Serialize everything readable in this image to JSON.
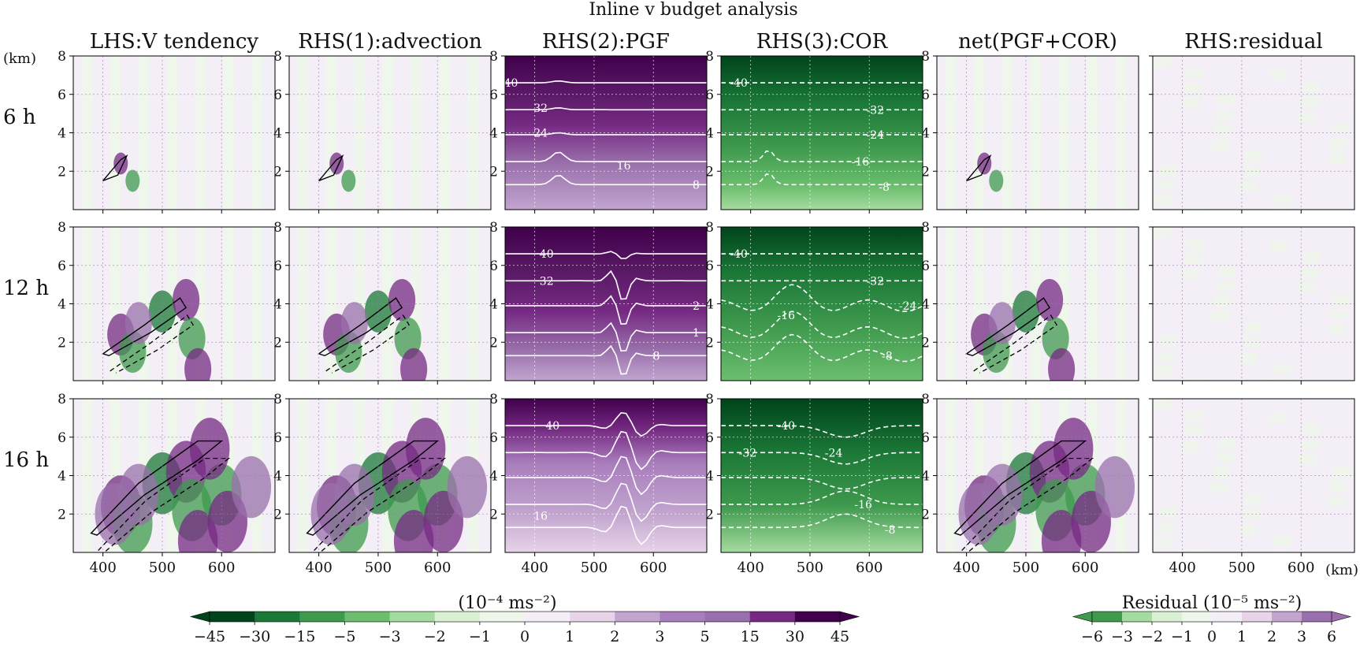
{
  "chart_data": {
    "type": "contour",
    "title": "Inline v budget analysis",
    "columns": [
      "LHS:V tendency",
      "RHS(1):advection",
      "RHS(2):PGF",
      "RHS(3):COR",
      "net(PGF+COR)",
      "RHS:residual"
    ],
    "rows": [
      "6 h",
      "12 h",
      "16 h"
    ],
    "y_unit": "(km)",
    "x_unit": "(km)",
    "ylim": [
      0,
      8
    ],
    "xlim": [
      350,
      690
    ],
    "yticks": [
      "8",
      "6",
      "4",
      "2"
    ],
    "xticks": [
      "400",
      "500",
      "600"
    ],
    "contour_labels": {
      "pgf": [
        [
          {
            "t": "40",
            "x": 360,
            "y": 6.6
          },
          {
            "t": "32",
            "x": 410,
            "y": 5.3
          },
          {
            "t": "24",
            "x": 410,
            "y": 4.0
          },
          {
            "t": "16",
            "x": 550,
            "y": 2.3
          },
          {
            "t": "8",
            "x": 672,
            "y": 1.3
          }
        ],
        [
          {
            "t": "40",
            "x": 420,
            "y": 6.6
          },
          {
            "t": "32",
            "x": 420,
            "y": 5.2
          },
          {
            "t": "2",
            "x": 672,
            "y": 3.9
          },
          {
            "t": "1",
            "x": 672,
            "y": 2.5
          },
          {
            "t": "8",
            "x": 605,
            "y": 1.3
          }
        ],
        [
          {
            "t": "40",
            "x": 430,
            "y": 6.6
          },
          {
            "t": "16",
            "x": 410,
            "y": 1.9
          }
        ]
      ],
      "cor": [
        [
          {
            "t": "-40",
            "x": 380,
            "y": 6.6
          },
          {
            "t": "-32",
            "x": 610,
            "y": 5.2
          },
          {
            "t": "-24",
            "x": 610,
            "y": 3.9
          },
          {
            "t": "-16",
            "x": 585,
            "y": 2.5
          },
          {
            "t": "-8",
            "x": 625,
            "y": 1.2
          }
        ],
        [
          {
            "t": "-40",
            "x": 380,
            "y": 6.6
          },
          {
            "t": "-32",
            "x": 610,
            "y": 5.2
          },
          {
            "t": "-24",
            "x": 665,
            "y": 3.9
          },
          {
            "t": "-16",
            "x": 460,
            "y": 3.4
          },
          {
            "t": "-8",
            "x": 630,
            "y": 1.3
          }
        ],
        [
          {
            "t": "-40",
            "x": 460,
            "y": 6.6
          },
          {
            "t": "-32",
            "x": 395,
            "y": 5.2
          },
          {
            "t": "-24",
            "x": 540,
            "y": 5.2
          },
          {
            "t": "-16",
            "x": 590,
            "y": 2.5
          },
          {
            "t": "-8",
            "x": 635,
            "y": 1.2
          }
        ]
      ]
    },
    "colorbar_main": {
      "label": "(10⁻⁴ ms⁻²)",
      "levels": [
        "−45",
        "−30",
        "−15",
        "−5",
        "−3",
        "−2",
        "−1",
        "0",
        "1",
        "2",
        "3",
        "5",
        "15",
        "30",
        "45"
      ],
      "colors": [
        "#00441b",
        "#1b7837",
        "#3f9a4e",
        "#6cbe6e",
        "#a6dba0",
        "#d9f0d3",
        "#eef6ea",
        "#f4eef6",
        "#e7d4e8",
        "#c2a5cf",
        "#a97ebc",
        "#9970ab",
        "#762a83",
        "#40004b"
      ]
    },
    "colorbar_residual": {
      "label": "Residual (10⁻⁵ ms⁻²)",
      "levels": [
        "−6",
        "−3",
        "−2",
        "−1",
        "0",
        "1",
        "2",
        "3",
        "6"
      ],
      "colors": [
        "#3f9a4e",
        "#a6dba0",
        "#d9f0d3",
        "#eef6ea",
        "#f4eef6",
        "#e7d4e8",
        "#c2a5cf",
        "#9970ab"
      ]
    },
    "grid": true,
    "legend": "none"
  }
}
